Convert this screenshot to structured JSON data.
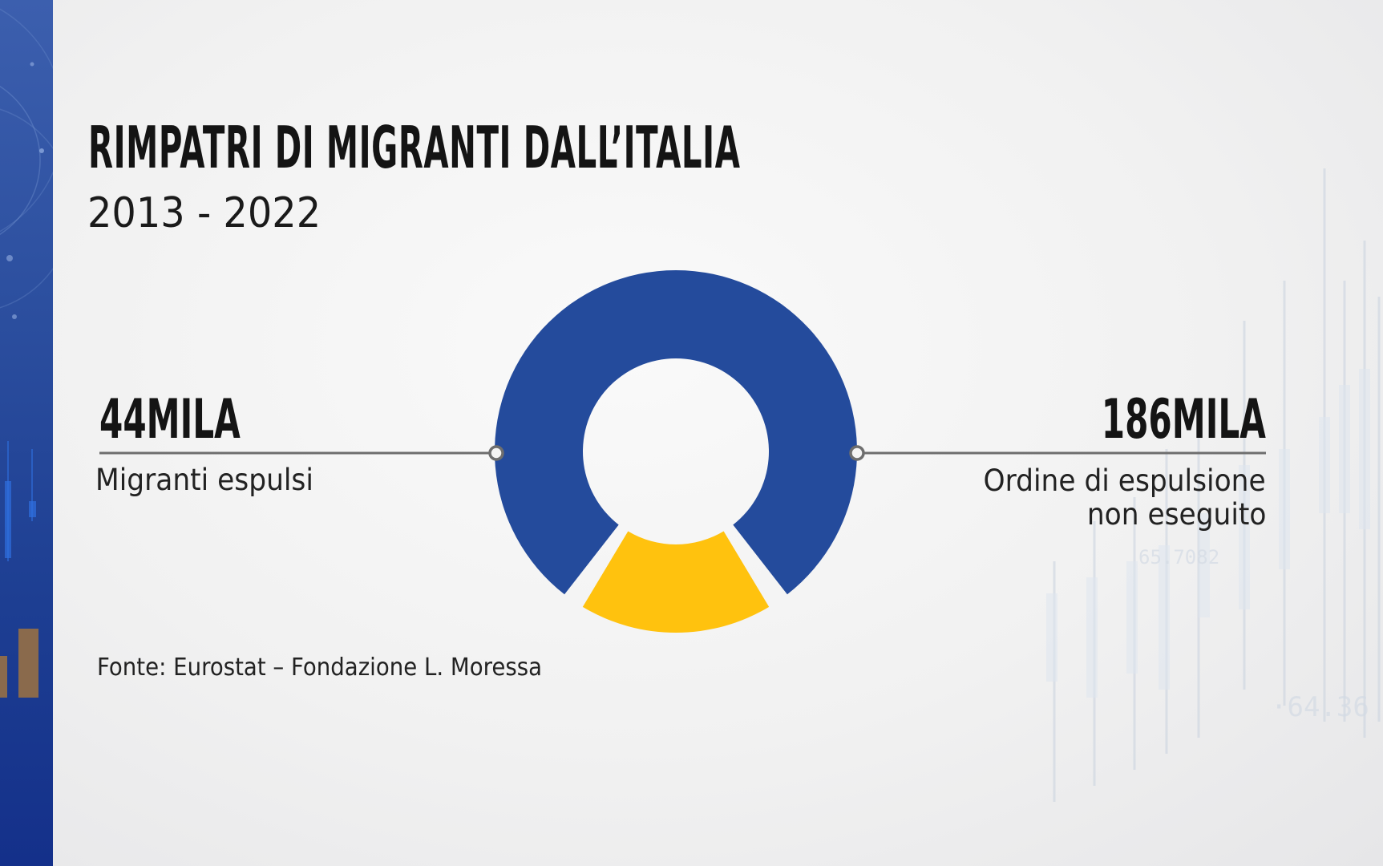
{
  "title": "RIMPATRI DI MIGRANTI DALL’ITALIA",
  "subtitle": "2013 - 2022",
  "colors": {
    "expelled": "#FFC20E",
    "not_executed": "#244B9C",
    "leader_line": "#6e6e6e"
  },
  "left_callout": {
    "value": "44MILA",
    "label": "Migranti espulsi"
  },
  "right_callout": {
    "value": "186MILA",
    "label_line1": "Ordine di espulsione",
    "label_line2": "non eseguito"
  },
  "source": "Fonte:  Eurostat – Fondazione L. Moressa",
  "chart_data": {
    "type": "pie",
    "title": "RIMPATRI DI MIGRANTI DALL’ITALIA",
    "subtitle": "2013 - 2022",
    "series": [
      {
        "name": "Migranti espulsi",
        "value": 44000,
        "display": "44MILA",
        "color": "#FFC20E"
      },
      {
        "name": "Ordine di espulsione non eseguito",
        "value": 186000,
        "display": "186MILA",
        "color": "#244B9C"
      }
    ],
    "donut": true
  }
}
